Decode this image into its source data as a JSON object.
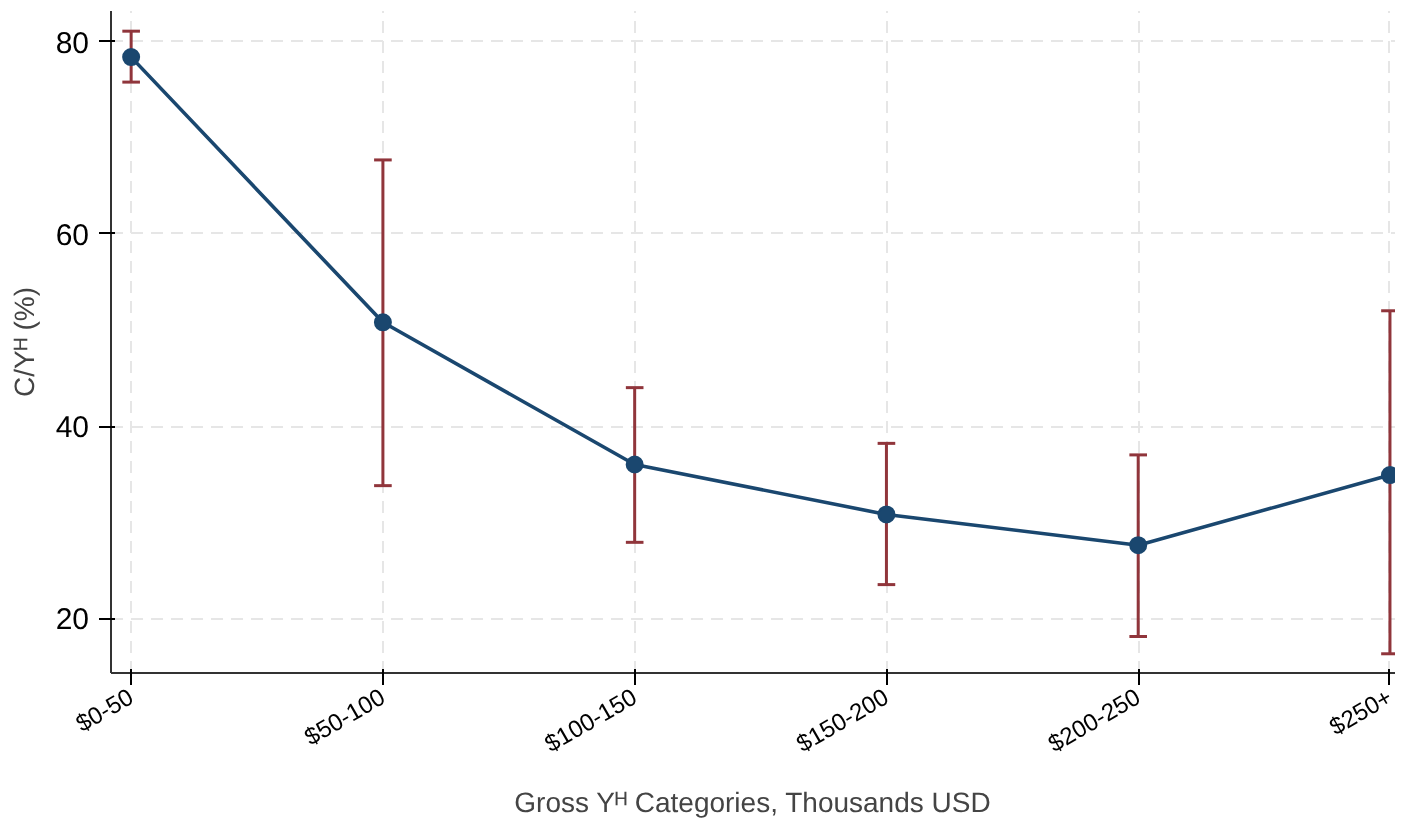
{
  "chart_data": {
    "type": "line",
    "xlabel": "Gross Yᴴ Categories, Thousands USD",
    "ylabel": "C/Yᴴ (%)",
    "categories": [
      "$0-50",
      "$50-100",
      "$100-150",
      "$150-200",
      "$200-250",
      "$250+"
    ],
    "series": [
      {
        "color": "#1a476f",
        "values": [
          78.4,
          50.8,
          36.0,
          30.8,
          27.6,
          34.9
        ],
        "errors": [
          [
            75.8,
            81.1
          ],
          [
            33.8,
            67.7
          ],
          [
            27.9,
            44.0
          ],
          [
            23.5,
            38.2
          ],
          [
            18.1,
            37.0
          ],
          [
            16.3,
            52.0
          ]
        ]
      }
    ],
    "ylim": [
      14.3,
      83.2
    ],
    "yticks": [
      20,
      40,
      60,
      80
    ],
    "grid": true,
    "marker": "circle",
    "line_style": "solid"
  }
}
